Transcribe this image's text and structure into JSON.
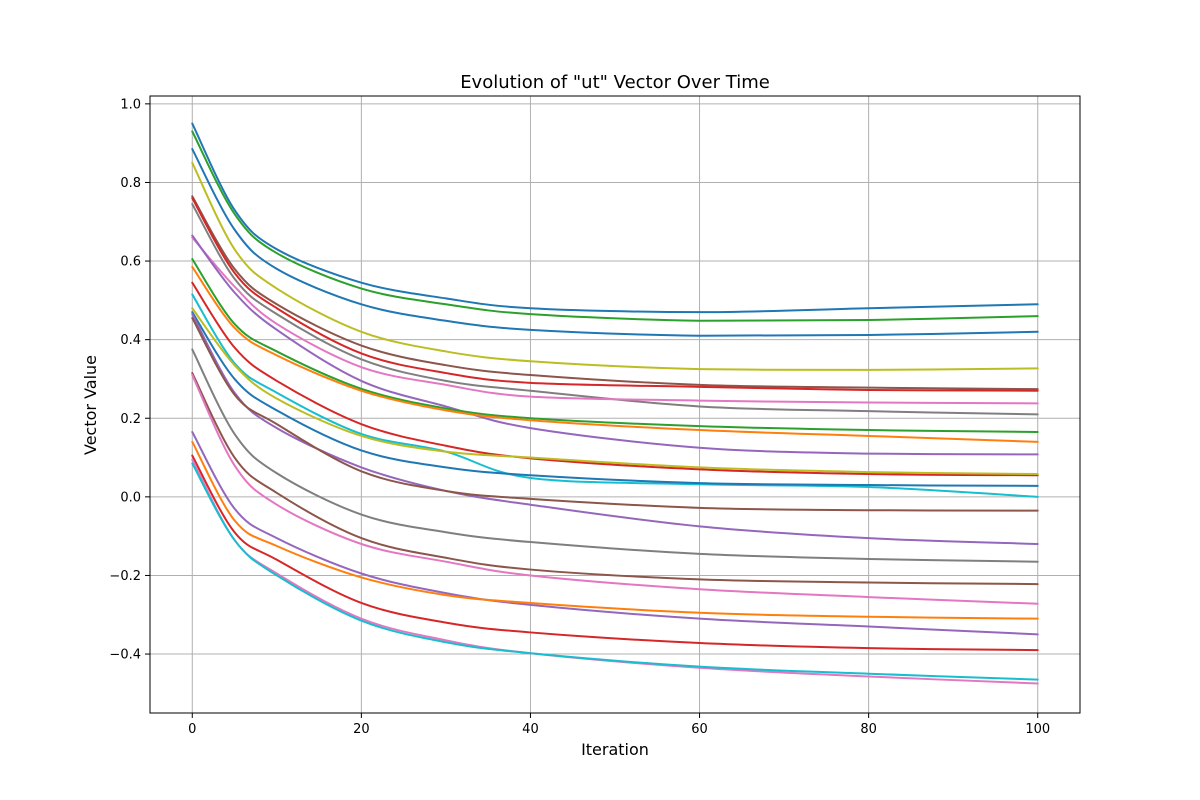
{
  "chart_data": {
    "type": "line",
    "title": "Evolution of \"ut\" Vector Over Time",
    "xlabel": "Iteration",
    "ylabel": "Vector Value",
    "xlim": [
      -5,
      105
    ],
    "ylim": [
      -0.55,
      1.02
    ],
    "xticks": [
      0,
      20,
      40,
      60,
      80,
      100
    ],
    "yticks": [
      -0.4,
      -0.2,
      0.0,
      0.2,
      0.4,
      0.6,
      0.8,
      1.0
    ],
    "ytick_labels": [
      "−0.4",
      "−0.2",
      "0.0",
      "0.2",
      "0.4",
      "0.6",
      "0.8",
      "1.0"
    ],
    "grid": true,
    "x": [
      0,
      5,
      10,
      20,
      30,
      40,
      60,
      80,
      100
    ],
    "series": [
      {
        "color": "#1f77b4",
        "values": [
          0.95,
          0.73,
          0.63,
          0.545,
          0.505,
          0.48,
          0.47,
          0.48,
          0.49
        ]
      },
      {
        "color": "#2ca02c",
        "values": [
          0.93,
          0.72,
          0.62,
          0.53,
          0.49,
          0.465,
          0.448,
          0.45,
          0.46
        ]
      },
      {
        "color": "#1f77b4",
        "values": [
          0.885,
          0.68,
          0.58,
          0.49,
          0.448,
          0.425,
          0.41,
          0.412,
          0.42
        ]
      },
      {
        "color": "#bcbd22",
        "values": [
          0.85,
          0.63,
          0.53,
          0.42,
          0.37,
          0.345,
          0.325,
          0.323,
          0.327
        ]
      },
      {
        "color": "#8c564b",
        "values": [
          0.765,
          0.58,
          0.49,
          0.385,
          0.335,
          0.31,
          0.285,
          0.278,
          0.274
        ]
      },
      {
        "color": "#d62728",
        "values": [
          0.76,
          0.57,
          0.48,
          0.365,
          0.315,
          0.29,
          0.28,
          0.272,
          0.27
        ]
      },
      {
        "color": "#7f7f7f",
        "values": [
          0.745,
          0.555,
          0.465,
          0.35,
          0.295,
          0.27,
          0.23,
          0.218,
          0.21
        ]
      },
      {
        "color": "#e377c2",
        "values": [
          0.66,
          0.535,
          0.44,
          0.33,
          0.285,
          0.255,
          0.245,
          0.24,
          0.238
        ]
      },
      {
        "color": "#9467bd",
        "values": [
          0.665,
          0.52,
          0.425,
          0.295,
          0.23,
          0.175,
          0.125,
          0.11,
          0.108
        ]
      },
      {
        "color": "#2ca02c",
        "values": [
          0.605,
          0.44,
          0.37,
          0.275,
          0.225,
          0.2,
          0.18,
          0.17,
          0.165
        ]
      },
      {
        "color": "#ff7f0e",
        "values": [
          0.585,
          0.43,
          0.36,
          0.27,
          0.22,
          0.195,
          0.17,
          0.155,
          0.14
        ]
      },
      {
        "color": "#d62728",
        "values": [
          0.545,
          0.38,
          0.295,
          0.185,
          0.13,
          0.098,
          0.07,
          0.058,
          0.055
        ]
      },
      {
        "color": "#17becf",
        "values": [
          0.515,
          0.34,
          0.265,
          0.16,
          0.115,
          0.048,
          0.032,
          0.025,
          0.0
        ]
      },
      {
        "color": "#bcbd22",
        "values": [
          0.48,
          0.335,
          0.25,
          0.155,
          0.115,
          0.1,
          0.075,
          0.063,
          0.058
        ]
      },
      {
        "color": "#1f77b4",
        "values": [
          0.47,
          0.3,
          0.22,
          0.118,
          0.075,
          0.055,
          0.035,
          0.03,
          0.028
        ]
      },
      {
        "color": "#9467bd",
        "values": [
          0.465,
          0.265,
          0.175,
          0.075,
          0.015,
          -0.02,
          -0.075,
          -0.105,
          -0.12
        ]
      },
      {
        "color": "#8c564b",
        "values": [
          0.455,
          0.26,
          0.185,
          0.065,
          0.015,
          -0.005,
          -0.028,
          -0.034,
          -0.035
        ]
      },
      {
        "color": "#7f7f7f",
        "values": [
          0.375,
          0.16,
          0.06,
          -0.045,
          -0.09,
          -0.115,
          -0.145,
          -0.158,
          -0.165
        ]
      },
      {
        "color": "#8c564b",
        "values": [
          0.315,
          0.1,
          0.01,
          -0.105,
          -0.155,
          -0.185,
          -0.21,
          -0.218,
          -0.222
        ]
      },
      {
        "color": "#e377c2",
        "values": [
          0.31,
          0.08,
          -0.02,
          -0.12,
          -0.165,
          -0.2,
          -0.235,
          -0.255,
          -0.272
        ]
      },
      {
        "color": "#9467bd",
        "values": [
          0.165,
          -0.03,
          -0.105,
          -0.195,
          -0.245,
          -0.275,
          -0.31,
          -0.33,
          -0.35
        ]
      },
      {
        "color": "#ff7f0e",
        "values": [
          0.14,
          -0.06,
          -0.125,
          -0.205,
          -0.25,
          -0.27,
          -0.295,
          -0.305,
          -0.31
        ]
      },
      {
        "color": "#d62728",
        "values": [
          0.105,
          -0.09,
          -0.16,
          -0.27,
          -0.32,
          -0.345,
          -0.372,
          -0.385,
          -0.39
        ]
      },
      {
        "color": "#e377c2",
        "values": [
          0.095,
          -0.11,
          -0.195,
          -0.31,
          -0.365,
          -0.398,
          -0.435,
          -0.457,
          -0.475
        ]
      },
      {
        "color": "#17becf",
        "values": [
          0.085,
          -0.11,
          -0.2,
          -0.315,
          -0.37,
          -0.398,
          -0.432,
          -0.45,
          -0.465
        ]
      }
    ]
  }
}
